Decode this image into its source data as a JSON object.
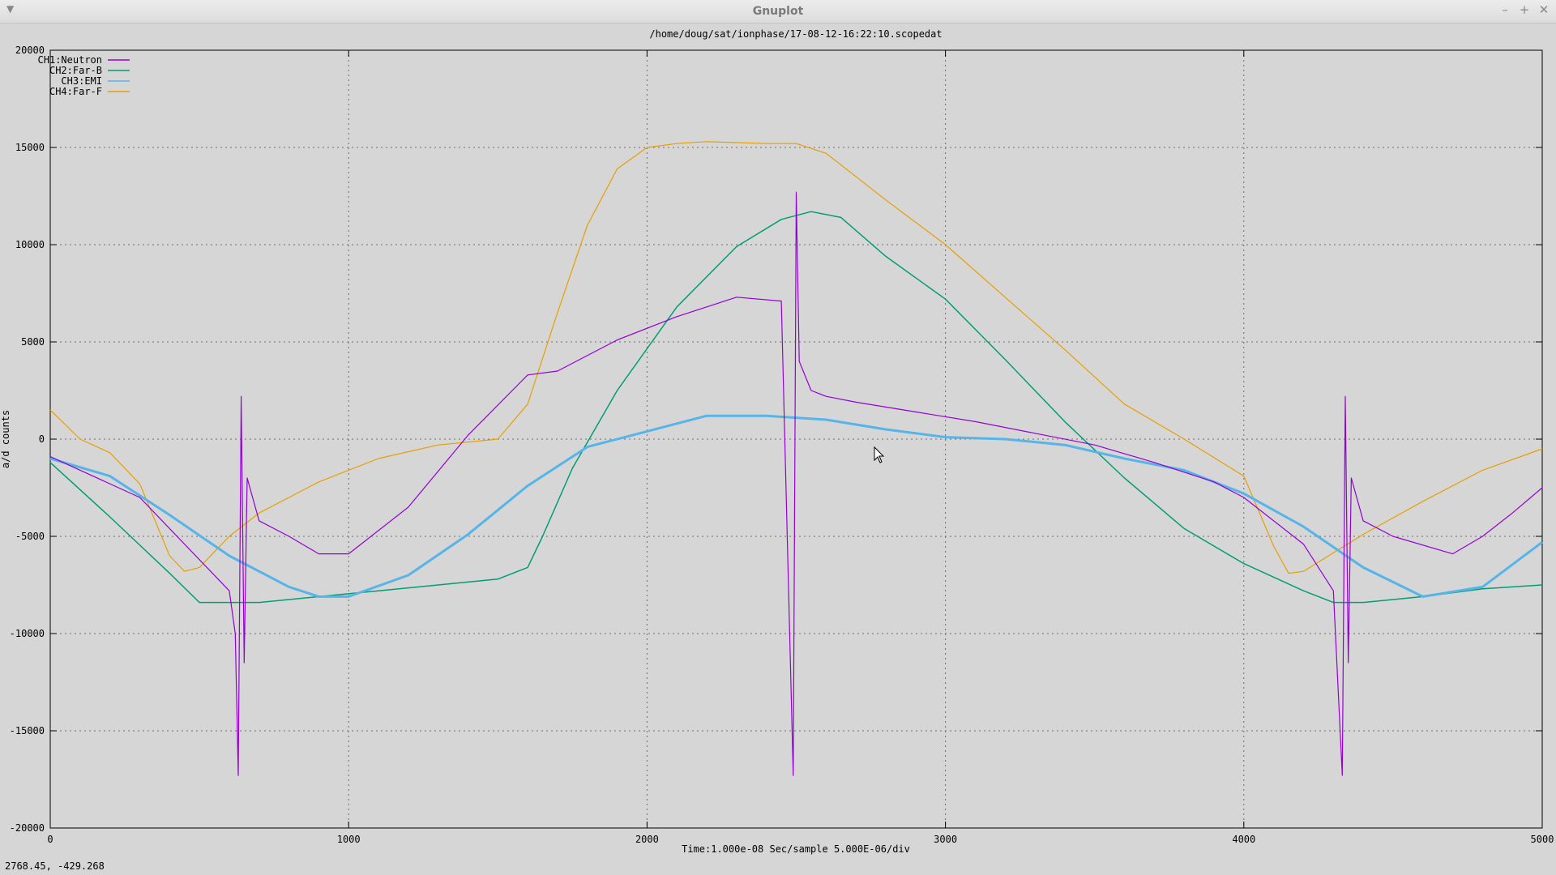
{
  "window": {
    "title": "Gnuplot",
    "minimize_label": "–",
    "maximize_label": "+",
    "close_label": "✕"
  },
  "status": {
    "coordinates": "2768.45, -429.268"
  },
  "chart_data": {
    "type": "line",
    "title": "/home/doug/sat/ionphase/17-08-12-16:22:10.scopedat",
    "xlabel": "Time:1.000e-08 Sec/sample 5.000E-06/div",
    "ylabel": "a/d counts",
    "xlim": [
      0,
      5000
    ],
    "ylim": [
      -20000,
      20000
    ],
    "xticks": [
      0,
      1000,
      2000,
      3000,
      4000,
      5000
    ],
    "yticks": [
      -20000,
      -15000,
      -10000,
      -5000,
      0,
      5000,
      10000,
      15000,
      20000
    ],
    "xtick_labels": [
      "0",
      "1000",
      "2000",
      "3000",
      "4000",
      "5000"
    ],
    "ytick_labels": [
      "-20000",
      "-15000",
      "-10000",
      "-5000",
      "0",
      "5000",
      "10000",
      "15000",
      "20000"
    ],
    "grid": true,
    "legend_position": "top-left",
    "series": [
      {
        "name": "CH1:Neutron",
        "color": "#9400d3",
        "x": [
          0,
          300,
          600,
          620,
          630,
          640,
          650,
          660,
          700,
          800,
          900,
          1000,
          1200,
          1400,
          1600,
          1700,
          1900,
          2100,
          2300,
          2450,
          2490,
          2500,
          2510,
          2550,
          2600,
          2700,
          2900,
          3100,
          3300,
          3500,
          3700,
          3900,
          4000,
          4200,
          4300,
          4330,
          4340,
          4350,
          4360,
          4400,
          4500,
          4700,
          4800,
          4900,
          5000
        ],
        "y": [
          -900,
          -3000,
          -7800,
          -10000,
          -17300,
          2200,
          -11500,
          -2000,
          -4200,
          -5000,
          -5900,
          -5900,
          -3500,
          200,
          3300,
          3500,
          5100,
          6300,
          7300,
          7100,
          -17300,
          12700,
          4000,
          2500,
          2200,
          1900,
          1400,
          900,
          300,
          -300,
          -1200,
          -2200,
          -3000,
          -5400,
          -7800,
          -17300,
          2200,
          -11500,
          -2000,
          -4200,
          -5000,
          -5900,
          -5000,
          -3800,
          -2500
        ]
      },
      {
        "name": "CH2:Far-B",
        "color": "#009e73",
        "x": [
          0,
          200,
          400,
          500,
          700,
          900,
          1100,
          1300,
          1500,
          1600,
          1650,
          1750,
          1900,
          2100,
          2300,
          2450,
          2550,
          2650,
          2800,
          3000,
          3200,
          3400,
          3600,
          3800,
          4000,
          4200,
          4300,
          4400,
          4600,
          4800,
          5000
        ],
        "y": [
          -1200,
          -4000,
          -6900,
          -8400,
          -8400,
          -8100,
          -7800,
          -7500,
          -7200,
          -6600,
          -5000,
          -1500,
          2500,
          6800,
          9900,
          11300,
          11700,
          11400,
          9400,
          7200,
          4100,
          900,
          -2000,
          -4600,
          -6400,
          -7800,
          -8400,
          -8400,
          -8100,
          -7700,
          -7500
        ]
      },
      {
        "name": "CH3:EMI",
        "color": "#56b4e9",
        "x": [
          0,
          200,
          400,
          600,
          800,
          900,
          1000,
          1200,
          1400,
          1600,
          1800,
          2000,
          2200,
          2400,
          2600,
          2800,
          3000,
          3200,
          3400,
          3600,
          3800,
          4000,
          4200,
          4400,
          4600,
          4800,
          5000
        ],
        "y": [
          -1000,
          -1900,
          -3900,
          -6000,
          -7600,
          -8100,
          -8100,
          -7000,
          -4900,
          -2400,
          -400,
          400,
          1200,
          1200,
          1000,
          500,
          100,
          0,
          -300,
          -1000,
          -1600,
          -2800,
          -4500,
          -6600,
          -8100,
          -7600,
          -5300
        ]
      },
      {
        "name": "CH4:Far-F",
        "color": "#e69f00",
        "x": [
          0,
          100,
          200,
          300,
          400,
          450,
          500,
          600,
          700,
          900,
          1100,
          1300,
          1500,
          1600,
          1700,
          1800,
          1900,
          2000,
          2100,
          2200,
          2400,
          2500,
          2600,
          2800,
          3000,
          3200,
          3400,
          3600,
          3800,
          4000,
          4100,
          4150,
          4200,
          4400,
          4600,
          4800,
          5000
        ],
        "y": [
          1500,
          0,
          -700,
          -2300,
          -6000,
          -6800,
          -6600,
          -5000,
          -3800,
          -2200,
          -1000,
          -300,
          0,
          1800,
          6500,
          11000,
          13900,
          15000,
          15200,
          15300,
          15200,
          15200,
          14700,
          12300,
          10000,
          7300,
          4600,
          1800,
          0,
          -1900,
          -5500,
          -6900,
          -6800,
          -4900,
          -3200,
          -1600,
          -500
        ]
      }
    ]
  }
}
